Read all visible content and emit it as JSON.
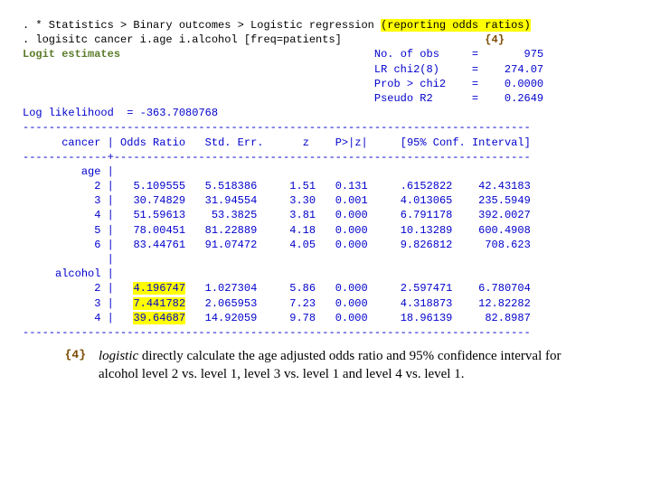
{
  "commands": {
    "line1_pre": ". * Statistics > Binary outcomes > Logistic regression ",
    "line1_hl": "(reporting odds ratios)",
    "line2_pre": ". logisitc cancer i.age i.alcohol [freq=patients]",
    "line2_tag": "{4}"
  },
  "header": {
    "title": "Logit estimates",
    "stats": [
      {
        "label": "No. of obs",
        "eq": "=",
        "val": "975"
      },
      {
        "label": "LR chi2(8)",
        "eq": "=",
        "val": "274.07"
      },
      {
        "label": "Prob > chi2",
        "eq": "=",
        "val": "0.0000"
      },
      {
        "label": "Pseudo R2",
        "eq": "=",
        "val": "0.2649"
      }
    ],
    "loglik_label": "Log likelihood",
    "loglik_val": "= -363.7080768"
  },
  "table": {
    "dep": "cancer",
    "cols": [
      "Odds Ratio",
      "Std. Err.",
      "z",
      "P>|z|",
      "[95% Conf. Interval]"
    ],
    "groups": [
      {
        "name": "age",
        "rows": [
          {
            "lvl": "2",
            "or": "5.109555",
            "se": "5.518386",
            "z": "1.51",
            "p": "0.131",
            "lo": ".6152822",
            "hi": "42.43183"
          },
          {
            "lvl": "3",
            "or": "30.74829",
            "se": "31.94554",
            "z": "3.30",
            "p": "0.001",
            "lo": "4.013065",
            "hi": "235.5949"
          },
          {
            "lvl": "4",
            "or": "51.59613",
            "se": "53.3825",
            "z": "3.81",
            "p": "0.000",
            "lo": "6.791178",
            "hi": "392.0027"
          },
          {
            "lvl": "5",
            "or": "78.00451",
            "se": "81.22889",
            "z": "4.18",
            "p": "0.000",
            "lo": "10.13289",
            "hi": "600.4908"
          },
          {
            "lvl": "6",
            "or": "83.44761",
            "se": "91.07472",
            "z": "4.05",
            "p": "0.000",
            "lo": "9.826812",
            "hi": "708.623"
          }
        ]
      },
      {
        "name": "alcohol",
        "rows": [
          {
            "lvl": "2",
            "or": "4.196747",
            "se": "1.027304",
            "z": "5.86",
            "p": "0.000",
            "lo": "2.597471",
            "hi": "6.780704"
          },
          {
            "lvl": "3",
            "or": "7.441782",
            "se": "2.065953",
            "z": "7.23",
            "p": "0.000",
            "lo": "4.318873",
            "hi": "12.82282"
          },
          {
            "lvl": "4",
            "or": "39.64687",
            "se": "14.92059",
            "z": "9.78",
            "p": "0.000",
            "lo": "18.96139",
            "hi": "82.8987"
          }
        ]
      }
    ]
  },
  "note": {
    "tag": "{4}",
    "cmd": "logistic",
    "text_rest": " directly calculate the age adjusted odds ratio and 95% confidence interval for alcohol level 2 vs. level 1, level 3 vs. level 1 and level 4 vs. level 1."
  },
  "colors": {
    "blue": "#0000cc",
    "green": "#5b7c2a",
    "brown": "#7b4a00",
    "highlight": "#ffff00"
  }
}
